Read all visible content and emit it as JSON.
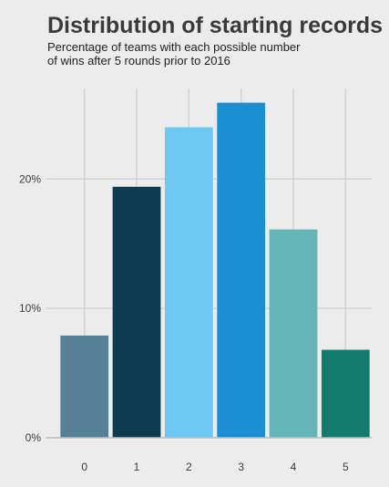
{
  "title": "Distribution of starting records",
  "subtitle_lines": [
    "Percentage of teams with each possible number",
    "of wins after 5 rounds prior to 2016"
  ],
  "chart_data": {
    "type": "bar",
    "title": "Distribution of starting records",
    "subtitle": "Percentage of teams with each possible number of wins after 5 rounds prior to 2016",
    "xlabel": "",
    "ylabel": "",
    "categories": [
      "0",
      "1",
      "2",
      "3",
      "4",
      "5"
    ],
    "values": [
      7.9,
      19.4,
      24.0,
      25.9,
      16.1,
      6.8
    ],
    "bar_colors": [
      "#577f95",
      "#0c3b50",
      "#6dc8f2",
      "#1a90d3",
      "#66b5b8",
      "#127a6e"
    ],
    "ylim": [
      0,
      27
    ],
    "yticks": [
      0,
      10,
      20
    ],
    "ytick_labels": [
      "0%",
      "10%",
      "20%"
    ],
    "grid": true,
    "background": "#ececec",
    "grid_color": "#d2d2d2",
    "axis_color": "#bdbdbd"
  }
}
